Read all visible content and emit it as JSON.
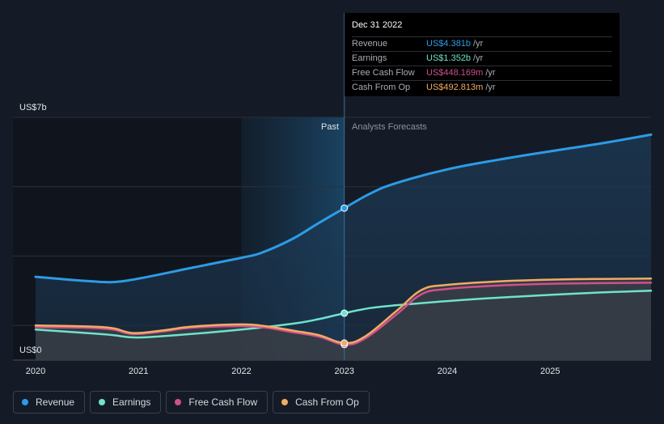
{
  "chart_data": {
    "type": "line",
    "title": "",
    "xlabel": "",
    "ylabel": "",
    "y_axis": {
      "top_label": "US$7b",
      "bottom_label": "US$0",
      "ylim": [
        0,
        7
      ]
    },
    "x_ticks": [
      {
        "value": 2020,
        "label": "2020"
      },
      {
        "value": 2021,
        "label": "2021"
      },
      {
        "value": 2022,
        "label": "2022"
      },
      {
        "value": 2023,
        "label": "2023"
      },
      {
        "value": 2024,
        "label": "2024"
      },
      {
        "value": 2025,
        "label": "2025"
      }
    ],
    "xlim": [
      2019.78,
      2025.98
    ],
    "divider_x": 2023.0,
    "highlight_start_x": 2022.0,
    "past_label": "Past",
    "forecast_label": "Analysts Forecasts",
    "series": [
      {
        "name": "Revenue",
        "color": "#2d9be6",
        "x": [
          2020.0,
          2020.5,
          2020.75,
          2021.0,
          2021.5,
          2022.0,
          2022.2,
          2022.5,
          2022.75,
          2023.0,
          2023.25,
          2023.5,
          2024.0,
          2024.5,
          2025.0,
          2025.5,
          2025.98
        ],
        "y": [
          2.4,
          2.28,
          2.25,
          2.35,
          2.65,
          2.95,
          3.1,
          3.5,
          3.95,
          4.381,
          4.8,
          5.1,
          5.5,
          5.78,
          6.02,
          6.25,
          6.5
        ]
      },
      {
        "name": "Earnings",
        "color": "#6fe3cc",
        "x": [
          2020.0,
          2020.5,
          2020.75,
          2021.0,
          2021.5,
          2022.0,
          2022.5,
          2022.75,
          2023.0,
          2023.25,
          2023.5,
          2024.0,
          2024.5,
          2025.0,
          2025.5,
          2025.98
        ],
        "y": [
          0.88,
          0.78,
          0.72,
          0.65,
          0.75,
          0.88,
          1.05,
          1.18,
          1.352,
          1.5,
          1.58,
          1.7,
          1.8,
          1.88,
          1.95,
          2.0
        ]
      },
      {
        "name": "Free Cash Flow",
        "color": "#d14f8c",
        "x": [
          2020.0,
          2020.5,
          2020.75,
          2020.95,
          2021.25,
          2021.5,
          2022.0,
          2022.25,
          2022.5,
          2022.75,
          2023.0,
          2023.2,
          2023.5,
          2023.75,
          2024.0,
          2024.5,
          2025.0,
          2025.5,
          2025.98
        ],
        "y": [
          0.95,
          0.93,
          0.88,
          0.75,
          0.83,
          0.93,
          0.98,
          0.93,
          0.8,
          0.68,
          0.448,
          0.62,
          1.3,
          1.9,
          2.05,
          2.15,
          2.2,
          2.22,
          2.23
        ]
      },
      {
        "name": "Cash From Op",
        "color": "#f0ac62",
        "x": [
          2020.0,
          2020.5,
          2020.75,
          2020.95,
          2021.25,
          2021.5,
          2022.0,
          2022.25,
          2022.5,
          2022.75,
          2023.0,
          2023.2,
          2023.5,
          2023.75,
          2024.0,
          2024.5,
          2025.0,
          2025.5,
          2025.98
        ],
        "y": [
          1.0,
          0.97,
          0.92,
          0.78,
          0.86,
          0.96,
          1.03,
          0.97,
          0.85,
          0.72,
          0.493,
          0.68,
          1.4,
          2.02,
          2.17,
          2.27,
          2.32,
          2.34,
          2.35
        ]
      }
    ],
    "highlight_point": {
      "x": 2023.0
    }
  },
  "tooltip": {
    "date": "Dec 31 2022",
    "rows": [
      {
        "label": "Revenue",
        "value": "US$4.381b",
        "unit": "/yr",
        "color": "#2d9be6"
      },
      {
        "label": "Earnings",
        "value": "US$1.352b",
        "unit": "/yr",
        "color": "#6fe3cc"
      },
      {
        "label": "Free Cash Flow",
        "value": "US$448.169m",
        "unit": "/yr",
        "color": "#d14f8c"
      },
      {
        "label": "Cash From Op",
        "value": "US$492.813m",
        "unit": "/yr",
        "color": "#f0ac62"
      }
    ]
  },
  "legend": [
    {
      "label": "Revenue",
      "color": "#2d9be6"
    },
    {
      "label": "Earnings",
      "color": "#6fe3cc"
    },
    {
      "label": "Free Cash Flow",
      "color": "#d14f8c"
    },
    {
      "label": "Cash From Op",
      "color": "#f0ac62"
    }
  ]
}
